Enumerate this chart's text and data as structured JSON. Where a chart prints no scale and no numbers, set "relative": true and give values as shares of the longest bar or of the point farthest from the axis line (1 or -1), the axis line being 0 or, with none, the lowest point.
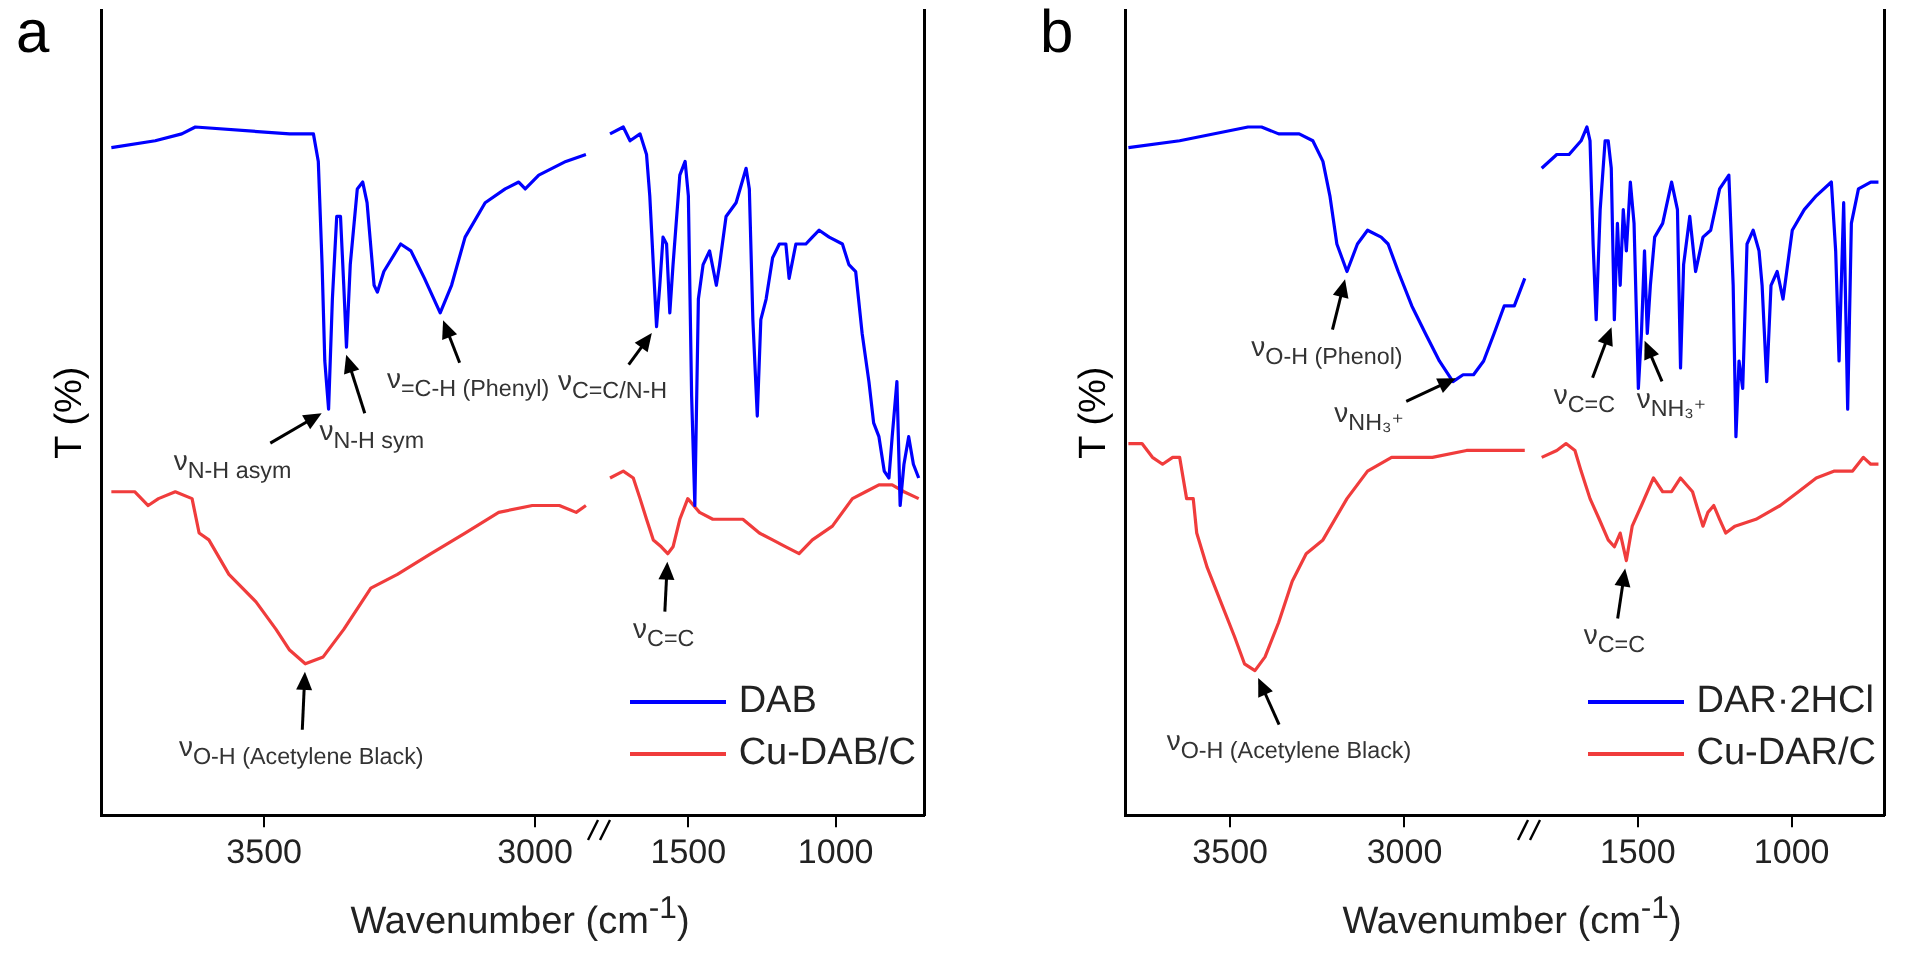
{
  "chart_data": [
    {
      "type": "line",
      "title": "a",
      "ylabel": "T (%)",
      "xlabel": "Wavenumber (cm$^{-1}$)",
      "relative": true,
      "marker": "none",
      "xlim": [
        3800,
        2880
      ],
      "xticks": [
        3500,
        3000
      ],
      "series": [
        {
          "color": "#0000ff",
          "x": [
            3782,
            3701,
            3652,
            3627,
            3453,
            3409,
            3400,
            3393,
            3388,
            3381,
            3374,
            3366,
            3359,
            3353,
            3348,
            3341,
            3328,
            3318,
            3310,
            3297,
            3291,
            3279,
            3248,
            3229,
            3204,
            3175,
            3154,
            3129,
            3092,
            3055,
            3030,
            3018,
            2993,
            2943,
            2906
          ],
          "values": [
            0.97,
            0.98,
            0.99,
            1,
            0.99,
            0.99,
            0.95,
            0.8,
            0.66,
            0.59,
            0.75,
            0.87,
            0.87,
            0.77,
            0.68,
            0.8,
            0.91,
            0.92,
            0.89,
            0.77,
            0.76,
            0.79,
            0.83,
            0.82,
            0.78,
            0.73,
            0.77,
            0.84,
            0.89,
            0.91,
            0.92,
            0.91,
            0.93,
            0.95,
            0.96
          ]
        },
        {
          "color": "#f03c3c",
          "x": [
            3782,
            3739,
            3714,
            3695,
            3664,
            3633,
            3620,
            3602,
            3565,
            3515,
            3478,
            3453,
            3424,
            3391,
            3353,
            3303,
            3254,
            3192,
            3129,
            3067,
            3005,
            2955,
            2924,
            2906
          ],
          "values": [
            0.47,
            0.47,
            0.45,
            0.46,
            0.47,
            0.46,
            0.41,
            0.4,
            0.35,
            0.31,
            0.27,
            0.24,
            0.22,
            0.23,
            0.27,
            0.33,
            0.35,
            0.38,
            0.41,
            0.44,
            0.45,
            0.45,
            0.44,
            0.45
          ]
        }
      ],
      "annotations": [
        {
          "text": "ν$_{N-H asym}$",
          "x": 3381,
          "y": 0.59
        },
        {
          "text": "ν$_{N-H sym}$",
          "x": 3353,
          "y": 0.68
        },
        {
          "text": "ν$_{=C-H (Phenyl)}$",
          "x": 3175,
          "y": 0.73
        },
        {
          "text": "ν$_{O-H (Acetylene Black)}$",
          "x": 3424,
          "y": 0.22
        }
      ]
    },
    {
      "type": "line",
      "relative": true,
      "marker": "none",
      "legend": "bottom right",
      "xlim": [
        1800,
        700
      ],
      "xticks": [
        1500,
        1000
      ],
      "series": [
        {
          "name": "DAB",
          "color": "#0000ff",
          "x": [
            1766,
            1721,
            1698,
            1664,
            1642,
            1631,
            1619,
            1608,
            1597,
            1586,
            1574,
            1563,
            1552,
            1529,
            1511,
            1500,
            1489,
            1478,
            1466,
            1450,
            1428,
            1405,
            1394,
            1372,
            1338,
            1304,
            1293,
            1281,
            1266,
            1254,
            1236,
            1214,
            1191,
            1169,
            1158,
            1135,
            1101,
            1079,
            1056,
            1022,
            977,
            955,
            932,
            910,
            887,
            871,
            853,
            835,
            819,
            808,
            792,
            781,
            768,
            752,
            736,
            718
          ],
          "values": [
            0.99,
            1,
            0.98,
            0.99,
            0.96,
            0.9,
            0.8,
            0.71,
            0.77,
            0.84,
            0.83,
            0.73,
            0.8,
            0.93,
            0.95,
            0.9,
            0.61,
            0.45,
            0.75,
            0.8,
            0.82,
            0.77,
            0.8,
            0.87,
            0.89,
            0.94,
            0.91,
            0.72,
            0.58,
            0.72,
            0.75,
            0.81,
            0.83,
            0.83,
            0.78,
            0.83,
            0.83,
            0.84,
            0.85,
            0.84,
            0.83,
            0.8,
            0.79,
            0.7,
            0.63,
            0.57,
            0.55,
            0.5,
            0.49,
            0.55,
            0.63,
            0.45,
            0.51,
            0.55,
            0.51,
            0.49
          ]
        },
        {
          "name": "Cu-DAB/C",
          "color": "#f03c3c",
          "x": [
            1766,
            1721,
            1687,
            1664,
            1642,
            1619,
            1592,
            1570,
            1552,
            1529,
            1502,
            1462,
            1417,
            1372,
            1315,
            1259,
            1214,
            1169,
            1124,
            1079,
            1011,
            943,
            898,
            853,
            808,
            768,
            718
          ],
          "values": [
            0.49,
            0.5,
            0.49,
            0.46,
            0.43,
            0.4,
            0.39,
            0.38,
            0.39,
            0.43,
            0.46,
            0.44,
            0.43,
            0.43,
            0.43,
            0.41,
            0.4,
            0.39,
            0.38,
            0.4,
            0.42,
            0.46,
            0.47,
            0.48,
            0.48,
            0.47,
            0.46
          ]
        }
      ],
      "annotations": [
        {
          "text": "ν$_{C=C/N-H}$",
          "x": 1608,
          "y": 0.71
        },
        {
          "text": "ν$_{C=C}$",
          "x": 1570,
          "y": 0.38
        }
      ]
    },
    {
      "type": "line",
      "title": "b",
      "ylabel": "T (%)",
      "xlabel": "Wavenumber (cm$^{-1}$)",
      "relative": true,
      "marker": "none",
      "xlim": [
        3800,
        2640
      ],
      "xticks": [
        3500,
        3000
      ],
      "series": [
        {
          "color": "#0000ff",
          "x": [
            3792,
            3645,
            3449,
            3410,
            3361,
            3302,
            3263,
            3234,
            3214,
            3194,
            3165,
            3135,
            3106,
            3067,
            3047,
            3018,
            2979,
            2940,
            2900,
            2861,
            2832,
            2802,
            2773,
            2743,
            2714,
            2685,
            2655
          ],
          "values": [
            0.97,
            0.98,
            1,
            1,
            0.99,
            0.99,
            0.98,
            0.95,
            0.9,
            0.83,
            0.79,
            0.83,
            0.85,
            0.84,
            0.83,
            0.79,
            0.74,
            0.7,
            0.66,
            0.63,
            0.64,
            0.64,
            0.66,
            0.7,
            0.74,
            0.74,
            0.78
          ]
        },
        {
          "color": "#f03c3c",
          "x": [
            3792,
            3753,
            3723,
            3694,
            3665,
            3645,
            3625,
            3606,
            3596,
            3566,
            3527,
            3488,
            3459,
            3429,
            3400,
            3361,
            3322,
            3282,
            3234,
            3165,
            3106,
            3037,
            2979,
            2920,
            2822,
            2743,
            2655
          ],
          "values": [
            0.54,
            0.54,
            0.52,
            0.51,
            0.52,
            0.52,
            0.46,
            0.46,
            0.41,
            0.36,
            0.31,
            0.26,
            0.22,
            0.21,
            0.23,
            0.28,
            0.34,
            0.38,
            0.4,
            0.46,
            0.5,
            0.52,
            0.52,
            0.52,
            0.53,
            0.53,
            0.53
          ]
        }
      ],
      "annotations": [
        {
          "text": "ν$_{O-H (Phenol)}$",
          "x": 3165,
          "y": 0.79
        },
        {
          "text": "ν$_{NH₃⁺}$",
          "x": 2832,
          "y": 0.64
        },
        {
          "text": "ν$_{O-H (Acetylene Black)}$",
          "x": 3429,
          "y": 0.21
        }
      ]
    },
    {
      "type": "line",
      "relative": true,
      "marker": "none",
      "legend": "bottom right",
      "xlim": [
        1850,
        700
      ],
      "xticks": [
        1500,
        1000
      ],
      "series": [
        {
          "name": "DAR·2HCl",
          "color": "#0000ff",
          "x": [
            1812,
            1763,
            1723,
            1684,
            1665,
            1655,
            1645,
            1635,
            1622,
            1606,
            1596,
            1586,
            1576,
            1566,
            1557,
            1547,
            1537,
            1524,
            1512,
            1498,
            1488,
            1478,
            1469,
            1459,
            1445,
            1419,
            1390,
            1371,
            1361,
            1351,
            1331,
            1312,
            1288,
            1263,
            1234,
            1204,
            1190,
            1181,
            1171,
            1159,
            1145,
            1125,
            1106,
            1096,
            1081,
            1067,
            1047,
            1028,
            998,
            959,
            920,
            871,
            857,
            846,
            831,
            818,
            806,
            783,
            743,
            718
          ],
          "values": [
            0.94,
            0.96,
            0.96,
            0.98,
            1,
            0.98,
            0.83,
            0.72,
            0.88,
            0.98,
            0.98,
            0.94,
            0.72,
            0.86,
            0.77,
            0.88,
            0.82,
            0.92,
            0.86,
            0.62,
            0.7,
            0.82,
            0.7,
            0.77,
            0.84,
            0.86,
            0.92,
            0.88,
            0.65,
            0.8,
            0.87,
            0.79,
            0.84,
            0.85,
            0.91,
            0.93,
            0.77,
            0.55,
            0.66,
            0.62,
            0.83,
            0.85,
            0.82,
            0.77,
            0.63,
            0.77,
            0.79,
            0.75,
            0.85,
            0.88,
            0.9,
            0.92,
            0.82,
            0.66,
            0.89,
            0.59,
            0.86,
            0.91,
            0.92,
            0.92
          ]
        },
        {
          "name": "Cu-DAR/C",
          "color": "#f03c3c",
          "x": [
            1812,
            1763,
            1733,
            1704,
            1684,
            1655,
            1625,
            1596,
            1576,
            1557,
            1537,
            1518,
            1488,
            1449,
            1419,
            1390,
            1361,
            1322,
            1302,
            1288,
            1272,
            1253,
            1234,
            1214,
            1184,
            1116,
            1037,
            978,
            920,
            861,
            802,
            767,
            743,
            718
          ],
          "values": [
            0.52,
            0.53,
            0.54,
            0.53,
            0.5,
            0.46,
            0.43,
            0.4,
            0.39,
            0.41,
            0.37,
            0.42,
            0.45,
            0.49,
            0.47,
            0.47,
            0.49,
            0.47,
            0.44,
            0.42,
            0.44,
            0.45,
            0.43,
            0.41,
            0.42,
            0.43,
            0.45,
            0.47,
            0.49,
            0.5,
            0.5,
            0.52,
            0.51,
            0.51
          ]
        }
      ],
      "annotations": [
        {
          "text": "ν$_{C=C}$",
          "x": 1576,
          "y": 0.72
        },
        {
          "text": "ν$_{NH₃⁺}$",
          "x": 1488,
          "y": 0.7
        },
        {
          "text": "ν$_{C=C}$",
          "x": 1537,
          "y": 0.37
        }
      ]
    }
  ]
}
